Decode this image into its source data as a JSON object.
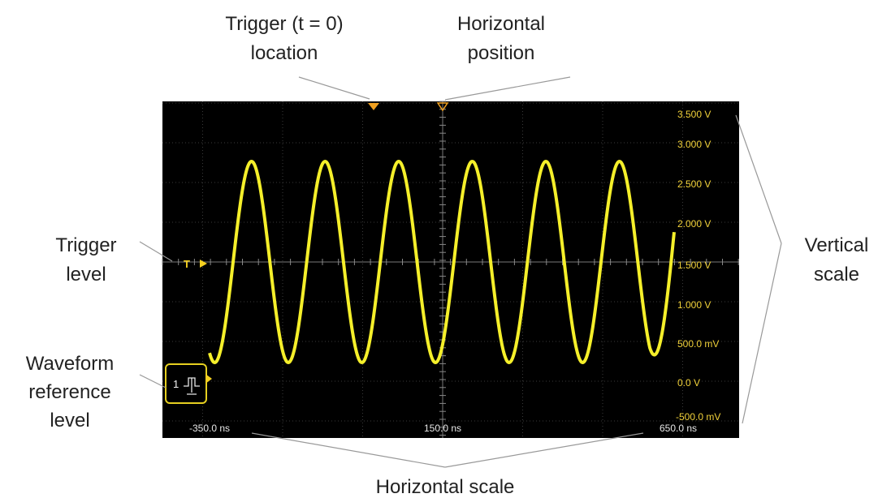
{
  "annotations": {
    "trigger_location": [
      "Trigger (t = 0)",
      "location"
    ],
    "horizontal_position": [
      "Horizontal",
      "position"
    ],
    "trigger_level": [
      "Trigger",
      "level"
    ],
    "waveform_reference_level": [
      "Waveform",
      "reference",
      "level"
    ],
    "vertical_scale": [
      "Vertical",
      "scale"
    ],
    "horizontal_scale": [
      "Horizontal scale"
    ]
  },
  "screen": {
    "vertical_scale_labels": [
      "3.500 V",
      "3.000 V",
      "2.500 V",
      "2.000 V",
      "1.500 V",
      "1.000 V",
      "500.0 mV",
      "0.0 V",
      "-500.0 mV"
    ],
    "horizontal_scale_labels": [
      "-350.0 ns",
      "150.0 ns",
      "650.0 ns"
    ],
    "trigger_marker": "T",
    "channel": "1"
  }
}
